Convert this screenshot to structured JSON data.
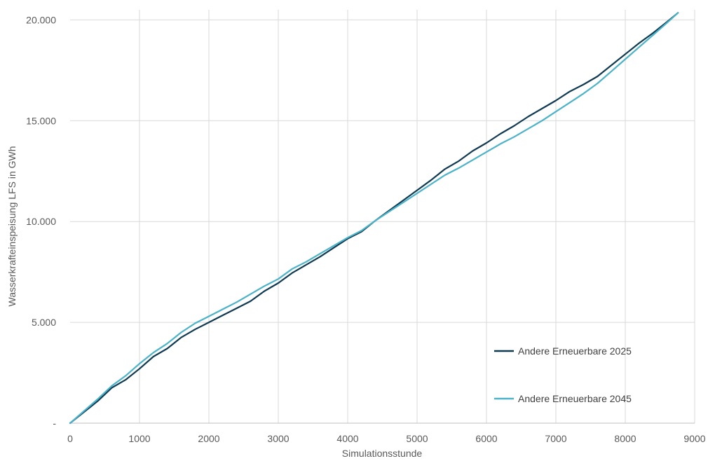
{
  "chart_data": {
    "type": "line",
    "title": "",
    "xlabel": "Simulationsstunde",
    "ylabel": "Wasserkrafteinspeisung LFS in GWh",
    "xlim": [
      0,
      9000
    ],
    "ylim": [
      0,
      20500
    ],
    "grid": true,
    "legend_position": "bottom-right",
    "x_ticks": [
      {
        "value": 0,
        "label": "0"
      },
      {
        "value": 1000,
        "label": "1000"
      },
      {
        "value": 2000,
        "label": "2000"
      },
      {
        "value": 3000,
        "label": "3000"
      },
      {
        "value": 4000,
        "label": "4000"
      },
      {
        "value": 5000,
        "label": "5000"
      },
      {
        "value": 6000,
        "label": "6000"
      },
      {
        "value": 7000,
        "label": "7000"
      },
      {
        "value": 8000,
        "label": "8000"
      },
      {
        "value": 9000,
        "label": "9000"
      }
    ],
    "y_ticks": [
      {
        "value": 0,
        "label": "-"
      },
      {
        "value": 5000,
        "label": "5.000"
      },
      {
        "value": 10000,
        "label": "10.000"
      },
      {
        "value": 15000,
        "label": "15.000"
      },
      {
        "value": 20000,
        "label": "20.000"
      }
    ],
    "series": [
      {
        "name": "Andere Erneuerbare 2025",
        "color": "#0f3a52",
        "x": [
          0,
          200,
          400,
          600,
          800,
          1000,
          1200,
          1400,
          1600,
          1800,
          2000,
          2200,
          2400,
          2600,
          2800,
          3000,
          3200,
          3400,
          3600,
          3800,
          4000,
          4200,
          4400,
          4600,
          4800,
          5000,
          5200,
          5400,
          5600,
          5800,
          6000,
          6200,
          6400,
          6600,
          6800,
          7000,
          7200,
          7400,
          7600,
          7800,
          8000,
          8200,
          8400,
          8600,
          8760
        ],
        "y": [
          0,
          550,
          1100,
          1750,
          2150,
          2700,
          3300,
          3700,
          4250,
          4650,
          5000,
          5350,
          5700,
          6050,
          6550,
          6950,
          7450,
          7850,
          8250,
          8700,
          9150,
          9500,
          10050,
          10550,
          11050,
          11550,
          12050,
          12600,
          13000,
          13500,
          13900,
          14350,
          14750,
          15200,
          15600,
          16000,
          16450,
          16800,
          17200,
          17750,
          18300,
          18850,
          19350,
          19900,
          20350
        ]
      },
      {
        "name": "Andere Erneuerbare 2045",
        "color": "#4bb3c9",
        "x": [
          0,
          200,
          400,
          600,
          800,
          1000,
          1200,
          1400,
          1600,
          1800,
          2000,
          2200,
          2400,
          2600,
          2800,
          3000,
          3200,
          3400,
          3600,
          3800,
          4000,
          4200,
          4400,
          4600,
          4800,
          5000,
          5200,
          5400,
          5600,
          5800,
          6000,
          6200,
          6400,
          6600,
          6800,
          7000,
          7200,
          7400,
          7600,
          7800,
          8000,
          8200,
          8400,
          8600,
          8760
        ],
        "y": [
          0,
          600,
          1200,
          1850,
          2350,
          2950,
          3500,
          3950,
          4500,
          4950,
          5300,
          5650,
          6000,
          6400,
          6800,
          7150,
          7650,
          8000,
          8400,
          8800,
          9200,
          9550,
          10050,
          10500,
          10950,
          11400,
          11850,
          12300,
          12650,
          13050,
          13450,
          13850,
          14200,
          14600,
          15000,
          15450,
          15900,
          16350,
          16850,
          17450,
          18050,
          18650,
          19250,
          19850,
          20350
        ]
      }
    ]
  }
}
